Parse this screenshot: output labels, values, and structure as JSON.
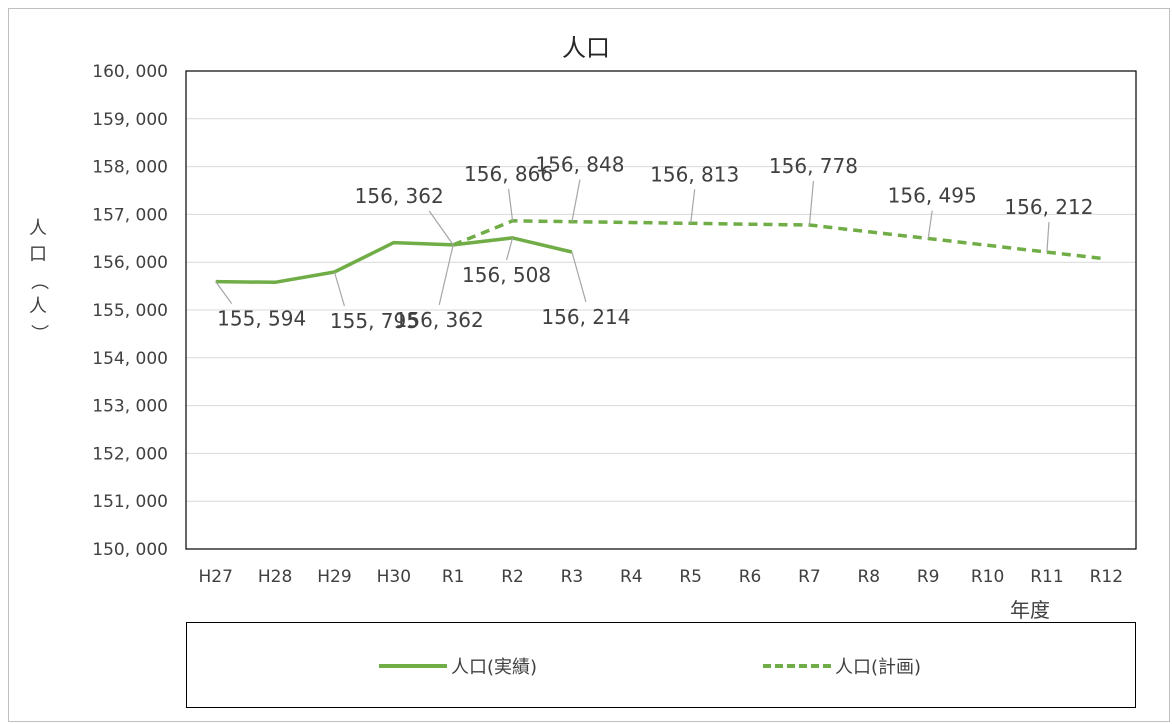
{
  "chart_data": {
    "type": "line",
    "title": "人口",
    "ylabel": "人口（人）",
    "xlabel": "年度",
    "categories": [
      "H27",
      "H28",
      "H29",
      "H30",
      "R1",
      "R2",
      "R3",
      "R4",
      "R5",
      "R6",
      "R7",
      "R8",
      "R9",
      "R10",
      "R11",
      "R12"
    ],
    "ylim": [
      150000,
      160000
    ],
    "yticks": [
      150000,
      151000,
      152000,
      153000,
      154000,
      155000,
      156000,
      157000,
      158000,
      159000,
      160000
    ],
    "ytick_labels": [
      "150, 000",
      "151, 000",
      "152, 000",
      "153, 000",
      "154, 000",
      "155, 000",
      "156, 000",
      "157, 000",
      "158, 000",
      "159, 000",
      "160, 000"
    ],
    "grid": true,
    "legend_position": "bottom",
    "color": "#70ad47",
    "series": [
      {
        "name": "人口(実績)",
        "style": "solid",
        "values": [
          155594,
          155580,
          155795,
          156410,
          156362,
          156508,
          156214,
          null,
          null,
          null,
          null,
          null,
          null,
          null,
          null,
          null
        ],
        "labels": [
          {
            "index": 0,
            "text": "155, 594"
          },
          {
            "index": 2,
            "text": "155, 795"
          },
          {
            "index": 4,
            "text": "156, 362"
          },
          {
            "index": 5,
            "text": "156, 508"
          },
          {
            "index": 6,
            "text": "156, 214"
          }
        ]
      },
      {
        "name": "人口(計画)",
        "style": "dashed",
        "values": [
          null,
          null,
          null,
          null,
          156362,
          156866,
          156848,
          156830,
          156813,
          156795,
          156778,
          156637,
          156495,
          156353,
          156212,
          156070
        ],
        "labels": [
          {
            "index": 4,
            "text": "156, 362"
          },
          {
            "index": 5,
            "text": "156, 866"
          },
          {
            "index": 6,
            "text": "156, 848"
          },
          {
            "index": 8,
            "text": "156, 813"
          },
          {
            "index": 10,
            "text": "156, 778"
          },
          {
            "index": 12,
            "text": "156, 495"
          },
          {
            "index": 14,
            "text": "156, 212"
          }
        ]
      }
    ]
  }
}
